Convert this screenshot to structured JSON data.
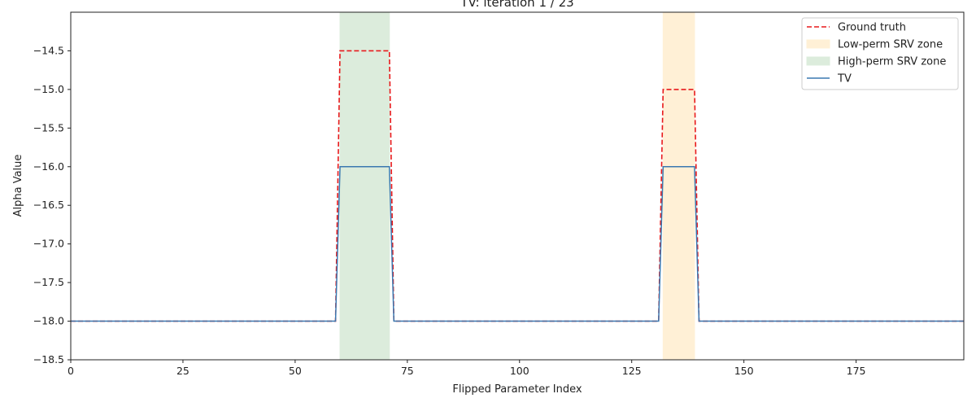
{
  "chart_data": {
    "type": "line",
    "title": "TV: iteration 1 / 23",
    "xlabel": "Flipped Parameter Index",
    "ylabel": "Alpha Value",
    "xlim": [
      0,
      199
    ],
    "ylim": [
      -18.5,
      -14.0
    ],
    "xticks": [
      0,
      25,
      50,
      75,
      100,
      125,
      150,
      175
    ],
    "yticks": [
      -18.5,
      -18.0,
      -17.5,
      -17.0,
      -16.5,
      -16.0,
      -15.5,
      -15.0,
      -14.5
    ],
    "legend_position": "top-right",
    "grid": false,
    "zones": [
      {
        "name": "Low-perm SRV zone",
        "x_start": 132,
        "x_end": 139,
        "color": "#fff0d6"
      },
      {
        "name": "High-perm SRV zone",
        "x_start": 60,
        "x_end": 71,
        "color": "#dcecdc"
      }
    ],
    "series": [
      {
        "name": "Ground truth",
        "style": "dashed",
        "color": "#e8191b",
        "x": [
          0,
          59,
          60,
          71,
          72,
          131,
          132,
          139,
          140,
          199
        ],
        "y": [
          -18,
          -18,
          -14.5,
          -14.5,
          -18,
          -18,
          -15,
          -15,
          -18,
          -18
        ]
      },
      {
        "name": "TV",
        "style": "solid",
        "color": "#3a78b0",
        "x": [
          0,
          59,
          60,
          71,
          72,
          131,
          132,
          139,
          140,
          199
        ],
        "y": [
          -18,
          -18,
          -16,
          -16,
          -18,
          -18,
          -16,
          -16,
          -18,
          -18
        ]
      }
    ],
    "legend": [
      {
        "label": "Ground truth",
        "kind": "line-dashed",
        "color": "#e8191b"
      },
      {
        "label": "Low-perm SRV zone",
        "kind": "patch",
        "color": "#fff0d6"
      },
      {
        "label": "High-perm SRV zone",
        "kind": "patch",
        "color": "#dcecdc"
      },
      {
        "label": "TV",
        "kind": "line-solid",
        "color": "#3a78b0"
      }
    ]
  }
}
